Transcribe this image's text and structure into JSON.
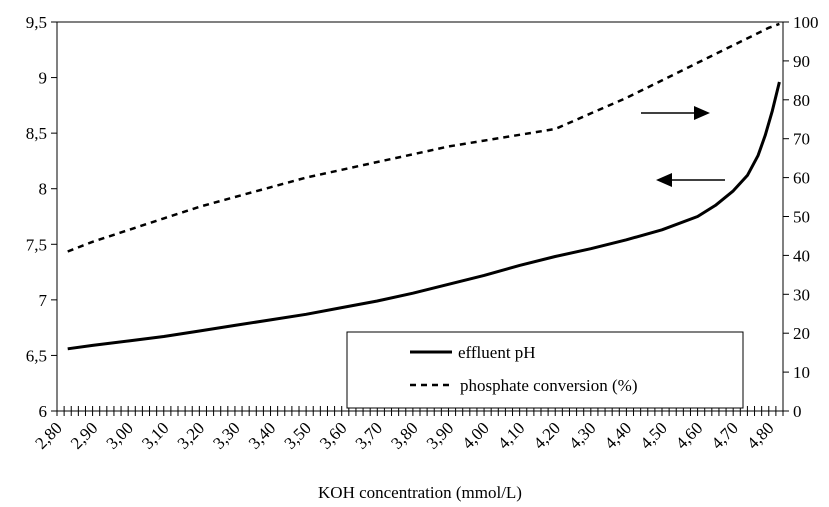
{
  "chart_data": {
    "type": "line",
    "title": "",
    "xlabel": "KOH concentration  (mmol/L)",
    "ylabel_left": "",
    "ylabel_right": "",
    "x_tick_labels": [
      "2,80",
      "2,90",
      "3,00",
      "3,10",
      "3,20",
      "3,30",
      "3,40",
      "3,50",
      "3,60",
      "3,70",
      "3,80",
      "3,90",
      "4,00",
      "4,10",
      "4,20",
      "4,30",
      "4,40",
      "4,50",
      "4,60",
      "4,70",
      "4,80"
    ],
    "xlim": [
      2.8,
      4.84
    ],
    "y_left": {
      "lim": [
        6,
        9.5
      ],
      "tick_labels": [
        "6",
        "6,5",
        "7",
        "7,5",
        "8",
        "8,5",
        "9",
        "9,5"
      ],
      "tick_values": [
        6,
        6.5,
        7,
        7.5,
        8,
        8.5,
        9,
        9.5
      ]
    },
    "y_right": {
      "lim": [
        0,
        100
      ],
      "tick_labels": [
        "0",
        "10",
        "20",
        "30",
        "40",
        "50",
        "60",
        "70",
        "80",
        "90",
        "100"
      ],
      "tick_values": [
        0,
        10,
        20,
        30,
        40,
        50,
        60,
        70,
        80,
        90,
        100
      ]
    },
    "series": [
      {
        "name": "effluent pH",
        "axis": "left",
        "style": "solid",
        "color": "#000000",
        "x": [
          2.83,
          2.9,
          3.0,
          3.1,
          3.2,
          3.3,
          3.4,
          3.5,
          3.6,
          3.7,
          3.8,
          3.9,
          4.0,
          4.1,
          4.2,
          4.3,
          4.4,
          4.5,
          4.6,
          4.65,
          4.7,
          4.74,
          4.77,
          4.79,
          4.81,
          4.83
        ],
        "y": [
          6.56,
          6.59,
          6.63,
          6.67,
          6.72,
          6.77,
          6.82,
          6.87,
          6.93,
          6.99,
          7.06,
          7.14,
          7.22,
          7.31,
          7.39,
          7.46,
          7.54,
          7.63,
          7.75,
          7.85,
          7.98,
          8.12,
          8.3,
          8.48,
          8.7,
          8.96
        ]
      },
      {
        "name": "phosphate conversion  (%)",
        "axis": "right",
        "style": "dashed",
        "color": "#000000",
        "x": [
          2.83,
          2.9,
          3.0,
          3.1,
          3.2,
          3.3,
          3.4,
          3.5,
          3.6,
          3.7,
          3.8,
          3.9,
          4.0,
          4.1,
          4.2,
          4.3,
          4.4,
          4.5,
          4.6,
          4.7,
          4.8,
          4.83
        ],
        "y": [
          41.0,
          43.5,
          46.5,
          49.5,
          52.5,
          55.0,
          57.5,
          60.0,
          62.0,
          64.0,
          66.0,
          68.0,
          69.5,
          71.0,
          72.5,
          76.5,
          80.5,
          85.0,
          89.5,
          94.0,
          98.5,
          99.5
        ]
      }
    ],
    "annotations": [
      {
        "type": "arrow",
        "direction": "right",
        "meaning": "phosphate conversion uses right axis"
      },
      {
        "type": "arrow",
        "direction": "left",
        "meaning": "effluent pH uses left axis"
      }
    ],
    "legend": {
      "placement": "bottom-right",
      "entries": [
        "effluent pH",
        "phosphate conversion  (%)"
      ]
    },
    "grid": false
  }
}
